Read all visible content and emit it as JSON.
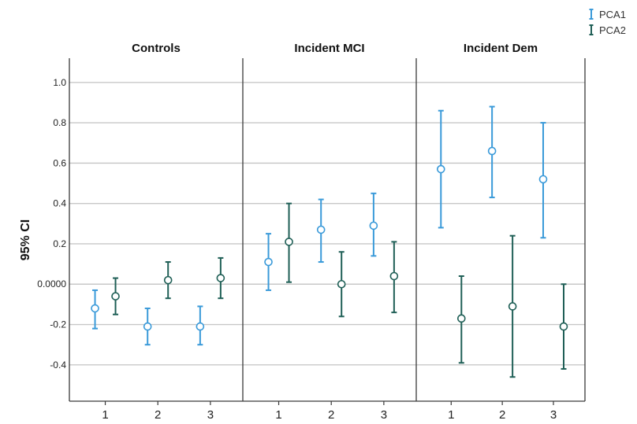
{
  "chart_data": {
    "type": "errorbar",
    "ylabel": "95% CI",
    "ylim": [
      -0.58,
      1.12
    ],
    "y_ticks": [
      {
        "value": 1.0,
        "label": "1.0"
      },
      {
        "value": 0.8,
        "label": "0.8"
      },
      {
        "value": 0.6,
        "label": "0.6"
      },
      {
        "value": 0.4,
        "label": "0.4"
      },
      {
        "value": 0.2,
        "label": "0.2"
      },
      {
        "value": 0.0,
        "label": "0.0000"
      },
      {
        "value": -0.2,
        "label": "-0.2"
      },
      {
        "value": -0.4,
        "label": "-0.4"
      }
    ],
    "grid": "horizontal",
    "legend_position": "top-right",
    "categories": [
      "1",
      "2",
      "3"
    ],
    "series": [
      {
        "name": "PCA1",
        "color": "#3a9ad9"
      },
      {
        "name": "PCA2",
        "color": "#1f5f56"
      }
    ],
    "panels": [
      {
        "title": "Controls",
        "PCA1": [
          {
            "x": "1",
            "mean": -0.12,
            "lower": -0.22,
            "upper": -0.03
          },
          {
            "x": "2",
            "mean": -0.21,
            "lower": -0.3,
            "upper": -0.12
          },
          {
            "x": "3",
            "mean": -0.21,
            "lower": -0.3,
            "upper": -0.11
          }
        ],
        "PCA2": [
          {
            "x": "1",
            "mean": -0.06,
            "lower": -0.15,
            "upper": 0.03
          },
          {
            "x": "2",
            "mean": 0.02,
            "lower": -0.07,
            "upper": 0.11
          },
          {
            "x": "3",
            "mean": 0.03,
            "lower": -0.07,
            "upper": 0.13
          }
        ]
      },
      {
        "title": "Incident MCI",
        "PCA1": [
          {
            "x": "1",
            "mean": 0.11,
            "lower": -0.03,
            "upper": 0.25
          },
          {
            "x": "2",
            "mean": 0.27,
            "lower": 0.11,
            "upper": 0.42
          },
          {
            "x": "3",
            "mean": 0.29,
            "lower": 0.14,
            "upper": 0.45
          }
        ],
        "PCA2": [
          {
            "x": "1",
            "mean": 0.21,
            "lower": 0.01,
            "upper": 0.4
          },
          {
            "x": "2",
            "mean": 0.0,
            "lower": -0.16,
            "upper": 0.16
          },
          {
            "x": "3",
            "mean": 0.04,
            "lower": -0.14,
            "upper": 0.21
          }
        ]
      },
      {
        "title": "Incident Dem",
        "PCA1": [
          {
            "x": "1",
            "mean": 0.57,
            "lower": 0.28,
            "upper": 0.86
          },
          {
            "x": "2",
            "mean": 0.66,
            "lower": 0.43,
            "upper": 0.88
          },
          {
            "x": "3",
            "mean": 0.52,
            "lower": 0.23,
            "upper": 0.8
          }
        ],
        "PCA2": [
          {
            "x": "1",
            "mean": -0.17,
            "lower": -0.39,
            "upper": 0.04
          },
          {
            "x": "2",
            "mean": -0.11,
            "lower": -0.46,
            "upper": 0.24
          },
          {
            "x": "3",
            "mean": -0.21,
            "lower": -0.42,
            "upper": 0.0
          }
        ]
      }
    ]
  }
}
